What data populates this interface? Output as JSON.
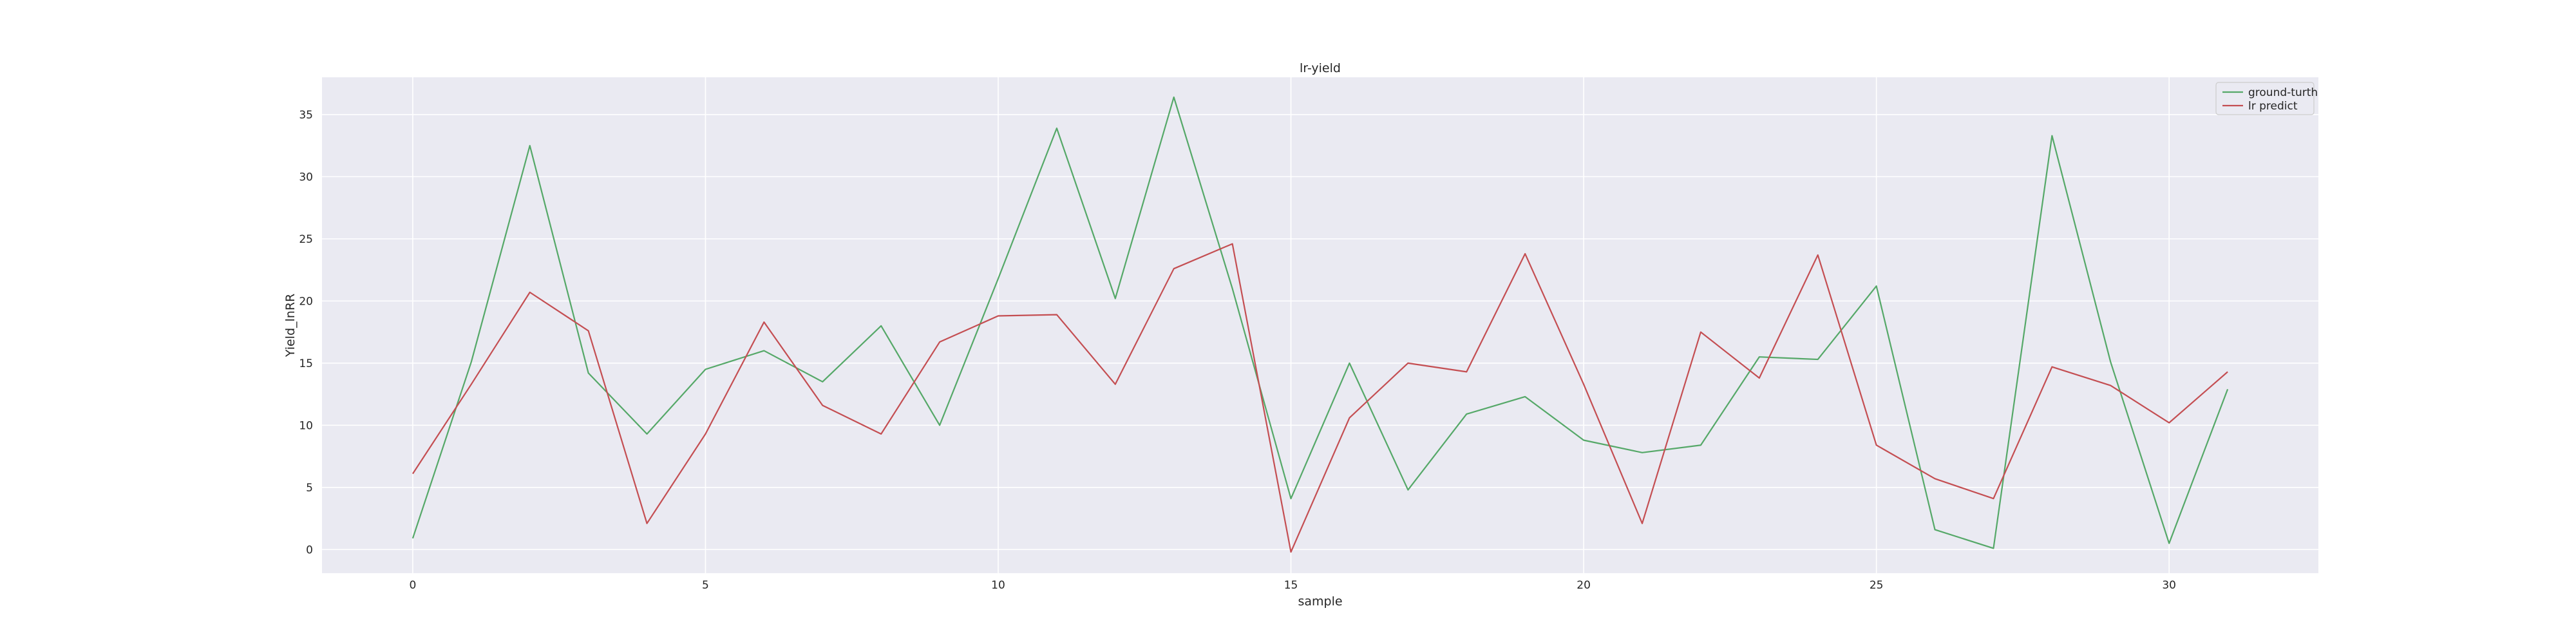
{
  "chart_data": {
    "type": "line",
    "title": "lr-yield",
    "xlabel": "sample",
    "ylabel": "Yield_lnRR",
    "xlim": [
      -1.55,
      32.55
    ],
    "ylim": [
      -1.9,
      38.0
    ],
    "xticks": [
      0,
      5,
      10,
      15,
      20,
      25,
      30
    ],
    "yticks": [
      0,
      5,
      10,
      15,
      20,
      25,
      30,
      35
    ],
    "grid": true,
    "legend_position": "top-right",
    "x": [
      0,
      1,
      2,
      3,
      4,
      5,
      6,
      7,
      8,
      9,
      10,
      11,
      12,
      13,
      14,
      15,
      16,
      17,
      18,
      19,
      20,
      21,
      22,
      23,
      24,
      25,
      26,
      27,
      28,
      29,
      30,
      31
    ],
    "series": [
      {
        "name": "ground-turth",
        "color": "#55a868",
        "values": [
          0.9,
          15.1,
          32.5,
          14.2,
          9.3,
          14.5,
          16.0,
          13.5,
          18.0,
          10.0,
          21.8,
          33.9,
          20.2,
          36.4,
          21.0,
          4.1,
          15.0,
          4.8,
          10.9,
          12.3,
          8.8,
          7.8,
          8.4,
          15.5,
          15.3,
          21.2,
          1.6,
          0.1,
          33.3,
          15.1,
          0.5,
          12.9
        ]
      },
      {
        "name": "lr predict",
        "color": "#c44e52",
        "values": [
          6.1,
          13.3,
          20.7,
          17.6,
          2.1,
          9.3,
          18.3,
          11.6,
          9.3,
          16.7,
          18.8,
          18.9,
          13.3,
          22.6,
          24.6,
          -0.2,
          10.6,
          15.0,
          14.3,
          23.8,
          13.3,
          2.1,
          17.5,
          13.8,
          23.7,
          8.4,
          5.7,
          4.1,
          14.7,
          13.2,
          10.2,
          14.3
        ]
      }
    ]
  }
}
